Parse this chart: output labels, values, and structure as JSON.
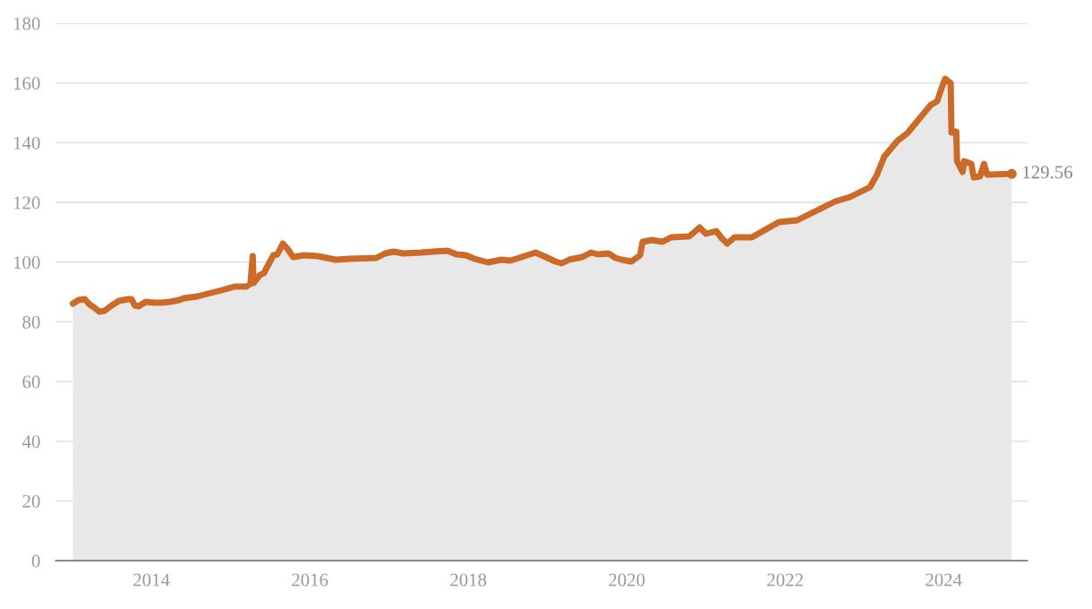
{
  "chart_data": {
    "type": "area",
    "xlim": [
      2012.79,
      2025.06
    ],
    "ylim": [
      0,
      180
    ],
    "xticks": [
      2014,
      2016,
      2018,
      2020,
      2022,
      2024
    ],
    "yticks": [
      0,
      20,
      40,
      60,
      80,
      100,
      120,
      140,
      160,
      180
    ],
    "grid": "y",
    "legend": false,
    "marker": "none",
    "line_style": "solid",
    "series": [
      {
        "color": "#cc6a28",
        "x": [
          2013.01,
          2013.08,
          2013.16,
          2013.22,
          2013.29,
          2013.34,
          2013.41,
          2013.5,
          2013.59,
          2013.71,
          2013.75,
          2013.79,
          2013.84,
          2013.93,
          2014.05,
          2014.12,
          2014.24,
          2014.35,
          2014.41,
          2014.58,
          2014.71,
          2014.89,
          2015.05,
          2015.2,
          2015.25,
          2015.28,
          2015.29,
          2015.37,
          2015.42,
          2015.48,
          2015.54,
          2015.59,
          2015.66,
          2015.72,
          2015.79,
          2015.93,
          2016.1,
          2016.33,
          2016.5,
          2016.84,
          2016.95,
          2017.06,
          2017.18,
          2017.4,
          2017.55,
          2017.74,
          2017.85,
          2017.97,
          2018.08,
          2018.25,
          2018.42,
          2018.53,
          2018.64,
          2018.85,
          2018.98,
          2019.1,
          2019.18,
          2019.27,
          2019.44,
          2019.55,
          2019.64,
          2019.77,
          2019.86,
          2019.94,
          2020.06,
          2020.17,
          2020.2,
          2020.32,
          2020.45,
          2020.56,
          2020.79,
          2020.92,
          2021.0,
          2021.13,
          2021.2,
          2021.27,
          2021.36,
          2021.58,
          2021.92,
          2022.15,
          2022.63,
          2022.82,
          2023.07,
          2023.16,
          2023.25,
          2023.42,
          2023.54,
          2023.84,
          2023.92,
          2023.98,
          2024.02,
          2024.09,
          2024.1,
          2024.16,
          2024.17,
          2024.24,
          2024.26,
          2024.35,
          2024.38,
          2024.46,
          2024.51,
          2024.55,
          2024.86
        ],
        "values": [
          86.1,
          87.3,
          87.6,
          85.8,
          84.6,
          83.4,
          83.7,
          85.5,
          87.0,
          87.6,
          87.6,
          85.5,
          85.2,
          86.7,
          86.4,
          86.4,
          86.7,
          87.3,
          87.9,
          88.5,
          89.4,
          90.6,
          91.8,
          91.8,
          92.7,
          102.0,
          93.0,
          95.7,
          96.3,
          99.3,
          102.3,
          102.6,
          106.2,
          104.4,
          101.7,
          102.3,
          102.0,
          100.8,
          101.1,
          101.4,
          102.9,
          103.5,
          102.9,
          103.2,
          103.5,
          103.8,
          102.6,
          102.3,
          101.1,
          99.9,
          100.8,
          100.5,
          101.4,
          103.2,
          101.7,
          100.2,
          99.6,
          100.8,
          101.7,
          103.2,
          102.6,
          102.9,
          101.4,
          100.8,
          100.2,
          102.3,
          106.8,
          107.4,
          106.8,
          108.3,
          108.6,
          111.6,
          109.5,
          110.4,
          108.0,
          106.2,
          108.3,
          108.3,
          113.4,
          114.0,
          120.3,
          121.8,
          125.1,
          129.3,
          135.3,
          140.7,
          143.1,
          152.7,
          153.9,
          158.7,
          161.4,
          159.9,
          143.4,
          143.7,
          133.8,
          130.2,
          133.8,
          132.9,
          128.4,
          128.7,
          132.9,
          129.3,
          129.56
        ]
      }
    ],
    "annotations": [
      {
        "text": "129.56",
        "x": 2024.86,
        "y": 129.56
      }
    ]
  }
}
